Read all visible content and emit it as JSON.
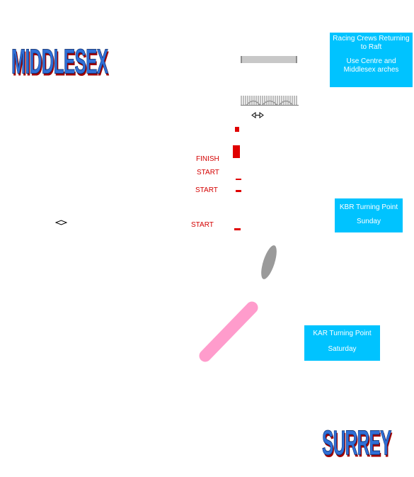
{
  "banks": {
    "north": "MIDDLESEX",
    "south": "SURREY"
  },
  "info_boxes": {
    "racing_crews": {
      "line1": "Racing Crews Returning to Raft",
      "line2": "Use Centre and Middlesex arches"
    },
    "kbr": {
      "line1": "KBR Turning Point",
      "line2": "Sunday"
    },
    "kar": {
      "line1": "KAR Turning Point",
      "line2": "Saturday"
    }
  },
  "course_labels": {
    "finish": "FINISH",
    "start_1": "START",
    "start_2": "START",
    "start_3": "START"
  },
  "icons": {
    "bridge_direction": "double-arrow-icon",
    "left_marker": "double-arrow-icon"
  },
  "colors": {
    "bank_text": "#2f6fd6",
    "bank_shadow": "#a00000",
    "info_box": "#00c3ff",
    "course_marker": "#e00000",
    "island": "#9a9a9a",
    "pink_zone": "#ff9ccc"
  }
}
